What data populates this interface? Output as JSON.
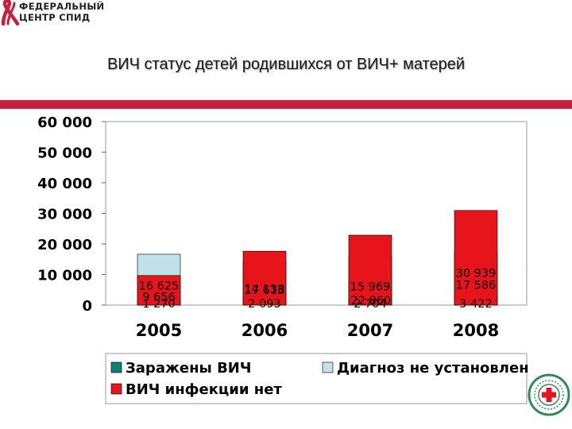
{
  "logo": {
    "line1": "ФЕДЕРАЛЬНЫЙ",
    "line2": "ЦЕНТР СПИД",
    "icon": "red-ribbon-logo-icon"
  },
  "title": "ВИЧ статус детей родившихся от ВИЧ+ матерей",
  "colors": {
    "accent_bar": "#c8203a",
    "infected": "#0f7f7a",
    "undetermined": "#bfe1e7",
    "not_infected": "#e8141b",
    "bar_stroke": "#000000"
  },
  "stamp": {
    "icon": "medical-cross-stamp-icon"
  },
  "chart_data": {
    "type": "bar",
    "stacked": true,
    "categories": [
      "2005",
      "2006",
      "2007",
      "2008"
    ],
    "series": [
      {
        "name": "Заражены ВИЧ",
        "color": "#0f7f7a",
        "values": [
          1270,
          2093,
          2704,
          3422
        ],
        "labels": [
          "1 270",
          "2 093",
          "2 704",
          "3 422"
        ]
      },
      {
        "name": "Диагноз не установлен",
        "color": "#bfe1e7",
        "values": [
          16625,
          14138,
          15969,
          17586
        ],
        "labels": [
          "16 625",
          "14 138",
          "15 969",
          "17 586"
        ]
      },
      {
        "name": "ВИЧ инфекции нет",
        "color": "#e8141b",
        "values": [
          9656,
          17613,
          22860,
          30939
        ],
        "labels": [
          "9 656",
          "17 613",
          "22 860",
          "30 939"
        ]
      }
    ],
    "ylim": [
      0,
      60000
    ],
    "yticks": [
      0,
      10000,
      20000,
      30000,
      40000,
      50000,
      60000
    ],
    "ytick_labels": [
      "0",
      "10 000",
      "20 000",
      "30 000",
      "40 000",
      "50 000",
      "60 000"
    ],
    "legend_position": "bottom",
    "grid": false
  }
}
